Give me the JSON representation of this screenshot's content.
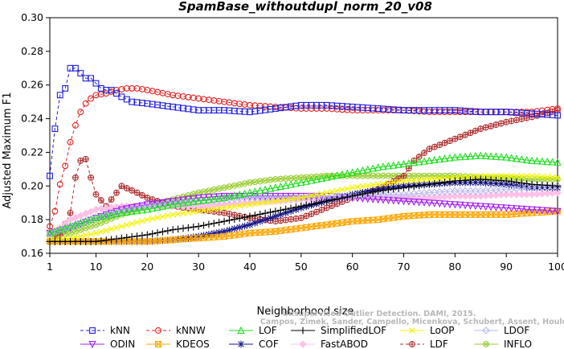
{
  "chart_data": {
    "type": "line",
    "title": "SpamBase_withoutdupl_norm_20_v08",
    "xlabel": "Neighborhood size",
    "ylabel": "Adjusted Maximum F1",
    "xlim": [
      1,
      100
    ],
    "ylim": [
      0.16,
      0.3
    ],
    "xticks": [
      "1",
      "10",
      "20",
      "30",
      "40",
      "50",
      "60",
      "70",
      "80",
      "90",
      "100"
    ],
    "yticks": [
      "0.16",
      "0.18",
      "0.20",
      "0.22",
      "0.24",
      "0.26",
      "0.28",
      "0.30"
    ],
    "grid": false,
    "legend_position": "bottom",
    "watermark": [
      "Unsupervised Outlier Detection. DAMI, 2015.",
      "Campos, Zimek, Sander, Campello, Micenkova, Schubert, Assent, Houle"
    ],
    "series": [
      {
        "name": "kNN",
        "color": "#1f1fe0",
        "marker": "square",
        "dash": true,
        "points": [
          [
            1,
            0.206
          ],
          [
            2,
            0.234
          ],
          [
            3,
            0.254
          ],
          [
            4,
            0.258
          ],
          [
            5,
            0.27
          ],
          [
            6,
            0.27
          ],
          [
            7,
            0.267
          ],
          [
            8,
            0.264
          ],
          [
            9,
            0.264
          ],
          [
            10,
            0.261
          ],
          [
            11,
            0.258
          ],
          [
            12,
            0.257
          ],
          [
            13,
            0.257
          ],
          [
            14,
            0.255
          ],
          [
            15,
            0.253
          ],
          [
            17,
            0.25
          ],
          [
            20,
            0.249
          ],
          [
            25,
            0.247
          ],
          [
            30,
            0.245
          ],
          [
            35,
            0.245
          ],
          [
            40,
            0.244
          ],
          [
            45,
            0.246
          ],
          [
            50,
            0.248
          ],
          [
            55,
            0.248
          ],
          [
            60,
            0.247
          ],
          [
            65,
            0.246
          ],
          [
            70,
            0.245
          ],
          [
            75,
            0.245
          ],
          [
            80,
            0.245
          ],
          [
            85,
            0.244
          ],
          [
            90,
            0.244
          ],
          [
            95,
            0.243
          ],
          [
            100,
            0.242
          ]
        ]
      },
      {
        "name": "kNNW",
        "color": "#e01f1f",
        "marker": "circle",
        "dash": true,
        "points": [
          [
            1,
            0.176
          ],
          [
            2,
            0.185
          ],
          [
            3,
            0.201
          ],
          [
            4,
            0.212
          ],
          [
            5,
            0.226
          ],
          [
            6,
            0.236
          ],
          [
            7,
            0.244
          ],
          [
            8,
            0.249
          ],
          [
            9,
            0.252
          ],
          [
            10,
            0.254
          ],
          [
            12,
            0.255
          ],
          [
            14,
            0.257
          ],
          [
            16,
            0.258
          ],
          [
            18,
            0.258
          ],
          [
            20,
            0.257
          ],
          [
            25,
            0.254
          ],
          [
            30,
            0.252
          ],
          [
            35,
            0.25
          ],
          [
            40,
            0.248
          ],
          [
            45,
            0.247
          ],
          [
            50,
            0.246
          ],
          [
            55,
            0.246
          ],
          [
            60,
            0.245
          ],
          [
            65,
            0.245
          ],
          [
            70,
            0.245
          ],
          [
            75,
            0.244
          ],
          [
            80,
            0.244
          ],
          [
            85,
            0.244
          ],
          [
            90,
            0.244
          ],
          [
            95,
            0.244
          ],
          [
            100,
            0.246
          ]
        ]
      },
      {
        "name": "LOF",
        "color": "#22dd22",
        "marker": "triangle-up",
        "dash": false,
        "points": [
          [
            1,
            0.172
          ],
          [
            3,
            0.174
          ],
          [
            5,
            0.176
          ],
          [
            8,
            0.179
          ],
          [
            10,
            0.181
          ],
          [
            15,
            0.184
          ],
          [
            20,
            0.186
          ],
          [
            25,
            0.189
          ],
          [
            30,
            0.191
          ],
          [
            35,
            0.193
          ],
          [
            40,
            0.196
          ],
          [
            45,
            0.199
          ],
          [
            50,
            0.202
          ],
          [
            55,
            0.205
          ],
          [
            60,
            0.208
          ],
          [
            65,
            0.211
          ],
          [
            70,
            0.213
          ],
          [
            75,
            0.215
          ],
          [
            80,
            0.217
          ],
          [
            85,
            0.218
          ],
          [
            90,
            0.217
          ],
          [
            95,
            0.215
          ],
          [
            100,
            0.214
          ]
        ]
      },
      {
        "name": "SimplifiedLOF",
        "color": "#000000",
        "marker": "plus",
        "dash": false,
        "points": [
          [
            1,
            0.167
          ],
          [
            5,
            0.167
          ],
          [
            10,
            0.167
          ],
          [
            15,
            0.169
          ],
          [
            20,
            0.171
          ],
          [
            25,
            0.174
          ],
          [
            30,
            0.176
          ],
          [
            35,
            0.179
          ],
          [
            40,
            0.182
          ],
          [
            45,
            0.185
          ],
          [
            50,
            0.188
          ],
          [
            55,
            0.191
          ],
          [
            60,
            0.194
          ],
          [
            65,
            0.197
          ],
          [
            70,
            0.199
          ],
          [
            75,
            0.201
          ],
          [
            80,
            0.203
          ],
          [
            85,
            0.204
          ],
          [
            90,
            0.203
          ],
          [
            95,
            0.201
          ],
          [
            100,
            0.2
          ]
        ]
      },
      {
        "name": "LoOP",
        "color": "#f2f200",
        "marker": "x",
        "dash": false,
        "points": [
          [
            1,
            0.168
          ],
          [
            5,
            0.169
          ],
          [
            10,
            0.172
          ],
          [
            15,
            0.176
          ],
          [
            20,
            0.18
          ],
          [
            25,
            0.183
          ],
          [
            30,
            0.185
          ],
          [
            35,
            0.187
          ],
          [
            40,
            0.189
          ],
          [
            45,
            0.191
          ],
          [
            50,
            0.193
          ],
          [
            55,
            0.196
          ],
          [
            60,
            0.199
          ],
          [
            65,
            0.201
          ],
          [
            70,
            0.203
          ],
          [
            75,
            0.204
          ],
          [
            80,
            0.205
          ],
          [
            85,
            0.206
          ],
          [
            90,
            0.206
          ],
          [
            95,
            0.206
          ],
          [
            100,
            0.205
          ]
        ]
      },
      {
        "name": "LDOF",
        "color": "#b8b8f0",
        "marker": "diamond",
        "dash": false,
        "points": [
          [
            1,
            0.172
          ],
          [
            5,
            0.176
          ],
          [
            10,
            0.181
          ],
          [
            15,
            0.185
          ],
          [
            20,
            0.188
          ],
          [
            25,
            0.19
          ],
          [
            30,
            0.191
          ],
          [
            35,
            0.192
          ],
          [
            40,
            0.193
          ],
          [
            45,
            0.193
          ],
          [
            50,
            0.193
          ],
          [
            55,
            0.194
          ],
          [
            60,
            0.194
          ],
          [
            65,
            0.195
          ],
          [
            70,
            0.195
          ],
          [
            75,
            0.196
          ],
          [
            80,
            0.197
          ],
          [
            85,
            0.197
          ],
          [
            90,
            0.198
          ],
          [
            95,
            0.199
          ],
          [
            100,
            0.2
          ]
        ]
      },
      {
        "name": "ODIN",
        "color": "#a020f0",
        "marker": "triangle-down",
        "dash": false,
        "points": [
          [
            1,
            0.172
          ],
          [
            5,
            0.175
          ],
          [
            10,
            0.181
          ],
          [
            15,
            0.186
          ],
          [
            20,
            0.189
          ],
          [
            25,
            0.191
          ],
          [
            30,
            0.193
          ],
          [
            35,
            0.194
          ],
          [
            40,
            0.194
          ],
          [
            45,
            0.194
          ],
          [
            50,
            0.194
          ],
          [
            55,
            0.194
          ],
          [
            60,
            0.193
          ],
          [
            65,
            0.192
          ],
          [
            70,
            0.191
          ],
          [
            75,
            0.19
          ],
          [
            80,
            0.189
          ],
          [
            85,
            0.188
          ],
          [
            90,
            0.187
          ],
          [
            95,
            0.186
          ],
          [
            100,
            0.185
          ]
        ]
      },
      {
        "name": "KDEOS",
        "color": "#ffa500",
        "marker": "square-x",
        "dash": false,
        "points": [
          [
            1,
            0.167
          ],
          [
            5,
            0.167
          ],
          [
            10,
            0.167
          ],
          [
            15,
            0.167
          ],
          [
            20,
            0.167
          ],
          [
            25,
            0.168
          ],
          [
            30,
            0.169
          ],
          [
            35,
            0.17
          ],
          [
            40,
            0.172
          ],
          [
            45,
            0.173
          ],
          [
            50,
            0.175
          ],
          [
            55,
            0.177
          ],
          [
            60,
            0.179
          ],
          [
            65,
            0.18
          ],
          [
            70,
            0.182
          ],
          [
            75,
            0.183
          ],
          [
            80,
            0.183
          ],
          [
            85,
            0.183
          ],
          [
            90,
            0.183
          ],
          [
            95,
            0.184
          ],
          [
            100,
            0.185
          ]
        ]
      },
      {
        "name": "COF",
        "color": "#1a1a8c",
        "marker": "asterisk",
        "dash": false,
        "points": [
          [
            1,
            0.167
          ],
          [
            5,
            0.167
          ],
          [
            10,
            0.167
          ],
          [
            15,
            0.167
          ],
          [
            20,
            0.167
          ],
          [
            25,
            0.168
          ],
          [
            30,
            0.17
          ],
          [
            35,
            0.173
          ],
          [
            40,
            0.177
          ],
          [
            45,
            0.182
          ],
          [
            50,
            0.187
          ],
          [
            55,
            0.191
          ],
          [
            60,
            0.195
          ],
          [
            65,
            0.198
          ],
          [
            70,
            0.2
          ],
          [
            75,
            0.201
          ],
          [
            80,
            0.202
          ],
          [
            85,
            0.202
          ],
          [
            90,
            0.201
          ],
          [
            95,
            0.199
          ],
          [
            100,
            0.199
          ]
        ]
      },
      {
        "name": "FastABOD",
        "color": "#ffc0e8",
        "marker": "diamond-filled",
        "dash": false,
        "points": [
          [
            1,
            0.17
          ],
          [
            5,
            0.18
          ],
          [
            10,
            0.186
          ],
          [
            15,
            0.188
          ],
          [
            20,
            0.188
          ],
          [
            25,
            0.188
          ],
          [
            30,
            0.188
          ],
          [
            35,
            0.189
          ],
          [
            40,
            0.19
          ],
          [
            45,
            0.191
          ],
          [
            50,
            0.192
          ],
          [
            55,
            0.192
          ],
          [
            60,
            0.193
          ],
          [
            65,
            0.193
          ],
          [
            70,
            0.193
          ],
          [
            75,
            0.193
          ],
          [
            80,
            0.194
          ],
          [
            85,
            0.194
          ],
          [
            90,
            0.195
          ],
          [
            95,
            0.195
          ],
          [
            100,
            0.196
          ]
        ]
      },
      {
        "name": "LDF",
        "color": "#b03030",
        "marker": "circle-plus",
        "dash": true,
        "points": [
          [
            1,
            0.167
          ],
          [
            3,
            0.171
          ],
          [
            5,
            0.184
          ],
          [
            6,
            0.205
          ],
          [
            7,
            0.215
          ],
          [
            8,
            0.216
          ],
          [
            9,
            0.205
          ],
          [
            10,
            0.195
          ],
          [
            12,
            0.188
          ],
          [
            15,
            0.2
          ],
          [
            18,
            0.196
          ],
          [
            20,
            0.193
          ],
          [
            25,
            0.188
          ],
          [
            30,
            0.186
          ],
          [
            35,
            0.184
          ],
          [
            40,
            0.181
          ],
          [
            45,
            0.179
          ],
          [
            50,
            0.181
          ],
          [
            55,
            0.187
          ],
          [
            60,
            0.193
          ],
          [
            65,
            0.198
          ],
          [
            70,
            0.206
          ],
          [
            72,
            0.215
          ],
          [
            75,
            0.222
          ],
          [
            80,
            0.228
          ],
          [
            85,
            0.234
          ],
          [
            90,
            0.238
          ],
          [
            95,
            0.241
          ],
          [
            100,
            0.245
          ]
        ]
      },
      {
        "name": "INFLO",
        "color": "#9acd32",
        "marker": "circle-x",
        "dash": false,
        "points": [
          [
            1,
            0.17
          ],
          [
            5,
            0.172
          ],
          [
            10,
            0.177
          ],
          [
            15,
            0.183
          ],
          [
            20,
            0.188
          ],
          [
            25,
            0.192
          ],
          [
            30,
            0.196
          ],
          [
            35,
            0.199
          ],
          [
            40,
            0.202
          ],
          [
            45,
            0.204
          ],
          [
            50,
            0.205
          ],
          [
            55,
            0.206
          ],
          [
            60,
            0.206
          ],
          [
            65,
            0.206
          ],
          [
            70,
            0.206
          ],
          [
            75,
            0.206
          ],
          [
            80,
            0.206
          ],
          [
            85,
            0.205
          ],
          [
            90,
            0.205
          ],
          [
            95,
            0.204
          ],
          [
            100,
            0.204
          ]
        ]
      }
    ]
  }
}
